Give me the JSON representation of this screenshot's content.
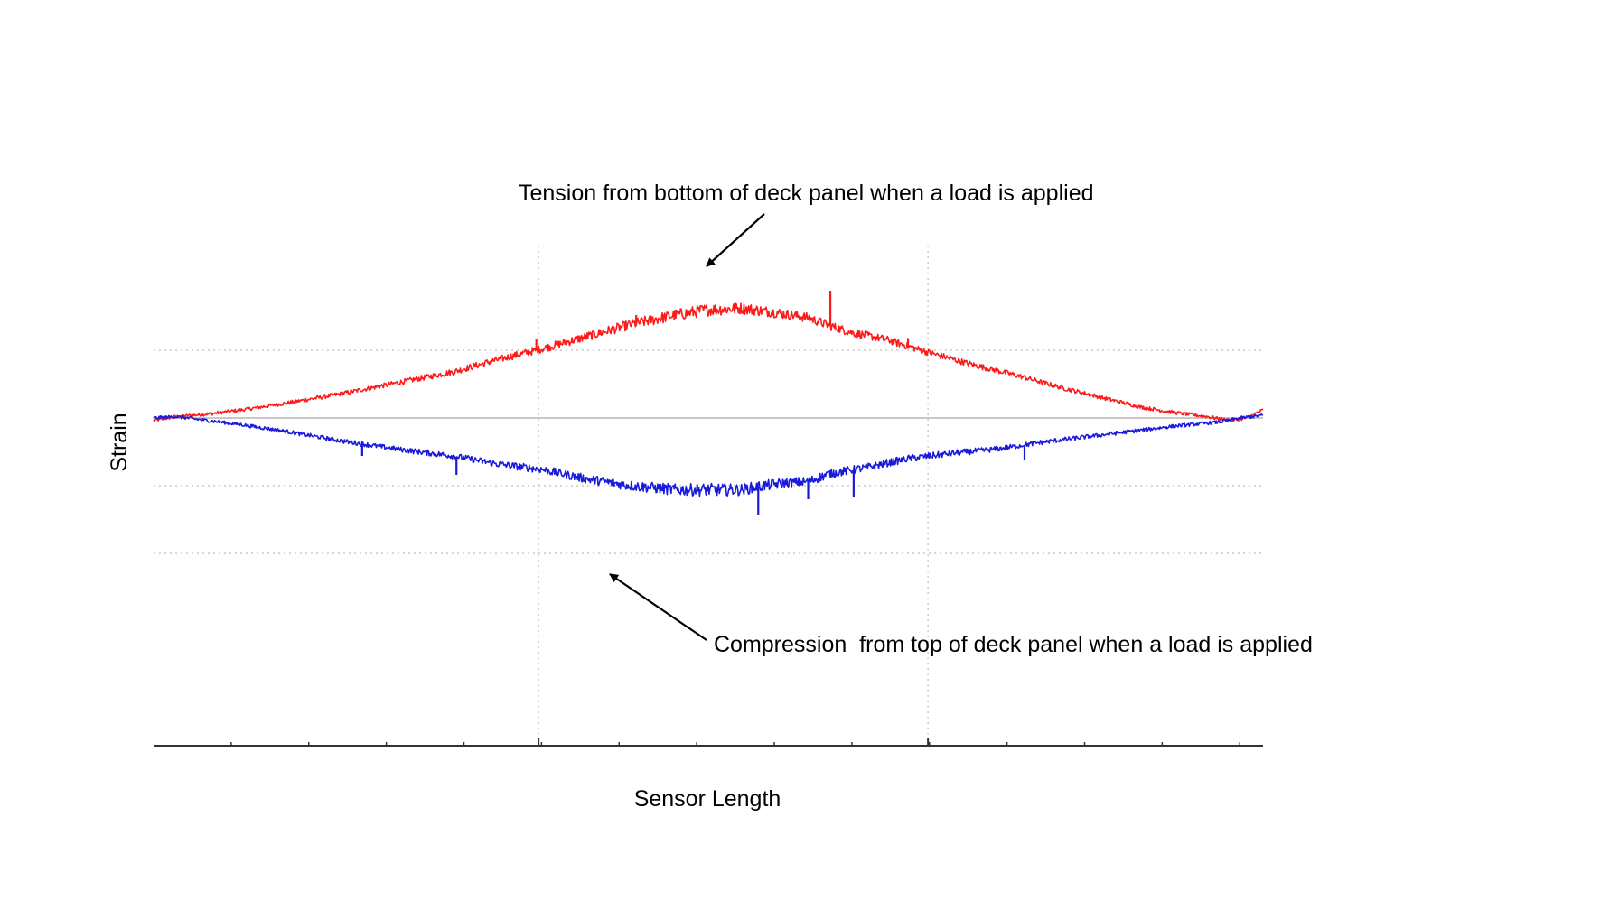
{
  "chart_data": {
    "type": "line",
    "xlabel": "Sensor Length",
    "ylabel": "Strain",
    "grid": true,
    "xlim": [
      0,
      100
    ],
    "ylim": [
      -1,
      1
    ],
    "x_major_gridlines": [
      34.7,
      69.8
    ],
    "y_gridlines": [
      0.5,
      -0.5,
      -1.0
    ],
    "annotations": [
      {
        "text": "Tension from bottom of deck panel when a load is applied",
        "points_to": "Tension"
      },
      {
        "text": "Compression  from top of deck panel when a load is applied",
        "points_to": "Compression"
      }
    ],
    "series": [
      {
        "key": "Tension",
        "color": "#ff1a1a",
        "x": [
          0,
          2,
          5,
          8,
          12,
          17,
          22,
          27,
          31,
          35,
          39,
          43,
          47,
          50,
          53,
          56,
          59,
          61,
          63,
          66,
          70,
          74,
          78,
          82,
          86,
          89,
          92,
          95,
          97,
          98.5,
          100
        ],
        "y": [
          -0.02,
          0.01,
          0.03,
          0.06,
          0.11,
          0.18,
          0.26,
          0.34,
          0.43,
          0.51,
          0.6,
          0.69,
          0.76,
          0.8,
          0.81,
          0.78,
          0.74,
          0.68,
          0.63,
          0.58,
          0.48,
          0.39,
          0.31,
          0.22,
          0.14,
          0.08,
          0.04,
          0.01,
          -0.02,
          0.0,
          0.06
        ],
        "spikes": [
          {
            "x": 34.5,
            "y": 0.58
          },
          {
            "x": 43.5,
            "y": 0.76
          },
          {
            "x": 52.5,
            "y": 0.84
          },
          {
            "x": 61.0,
            "y": 0.94
          },
          {
            "x": 68.0,
            "y": 0.59
          }
        ]
      },
      {
        "key": "Compression",
        "color": "#1a1add",
        "x": [
          0,
          2,
          5,
          8,
          12,
          17,
          22,
          27,
          31,
          35,
          39,
          43,
          47,
          50,
          53,
          55,
          57,
          59,
          61,
          64,
          68,
          72,
          76,
          80,
          84,
          88,
          92,
          96,
          98,
          100
        ],
        "y": [
          0.0,
          0.01,
          -0.02,
          -0.05,
          -0.1,
          -0.17,
          -0.23,
          -0.28,
          -0.34,
          -0.38,
          -0.45,
          -0.5,
          -0.53,
          -0.53,
          -0.53,
          -0.5,
          -0.48,
          -0.47,
          -0.41,
          -0.37,
          -0.3,
          -0.26,
          -0.23,
          -0.18,
          -0.14,
          -0.1,
          -0.06,
          -0.03,
          0.0,
          0.02
        ],
        "spikes": [
          {
            "x": 18.8,
            "y": -0.28
          },
          {
            "x": 27.3,
            "y": -0.42
          },
          {
            "x": 54.5,
            "y": -0.72
          },
          {
            "x": 59.0,
            "y": -0.6
          },
          {
            "x": 63.1,
            "y": -0.58
          },
          {
            "x": 78.5,
            "y": -0.31
          }
        ]
      }
    ]
  }
}
